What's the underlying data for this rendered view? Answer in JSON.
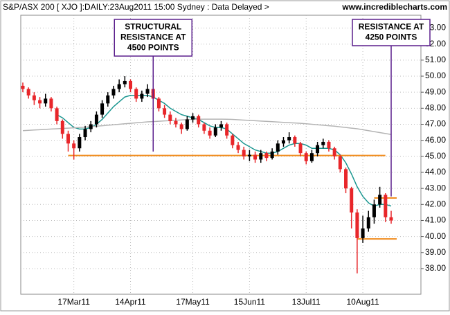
{
  "chart_data": {
    "type": "candlestick",
    "title": "S&P/ASX 200 [ XJO ]:DAILY:23Aug2011 15:00 Sydney : Data Delayed >",
    "source": "www.incrediblecharts.com",
    "categories": [
      null,
      null,
      null,
      null,
      null,
      null,
      null,
      null,
      null,
      "17Mar11",
      null,
      null,
      null,
      null,
      null,
      null,
      null,
      null,
      null,
      "14Apr11",
      null,
      null,
      null,
      null,
      null,
      null,
      null,
      null,
      null,
      null,
      "17May11",
      null,
      null,
      null,
      null,
      null,
      null,
      null,
      null,
      null,
      "15Jun11",
      null,
      null,
      null,
      null,
      null,
      null,
      null,
      null,
      null,
      "13Jul11",
      null,
      null,
      null,
      null,
      null,
      null,
      null,
      null,
      null,
      "10Aug11",
      null,
      null,
      null,
      null,
      null
    ],
    "open": [
      49.4,
      49.2,
      48.8,
      48.5,
      48.3,
      48.6,
      48.0,
      47.2,
      46.4,
      45.8,
      45.5,
      46.2,
      46.7,
      47.0,
      47.6,
      48.3,
      48.8,
      49.2,
      49.5,
      49.7,
      49.2,
      48.6,
      48.9,
      49.2,
      48.6,
      48.0,
      47.6,
      47.2,
      47.0,
      46.7,
      47.3,
      47.5,
      47.0,
      46.6,
      46.3,
      46.8,
      47.0,
      46.3,
      45.7,
      45.4,
      45.0,
      45.1,
      44.8,
      45.2,
      44.9,
      45.3,
      45.8,
      46.0,
      46.2,
      45.8,
      45.2,
      44.7,
      45.2,
      45.7,
      45.9,
      45.5,
      45.0,
      44.2,
      43.0,
      41.5,
      39.9,
      40.5,
      41.2,
      42.0,
      42.6,
      41.2
    ],
    "high": [
      49.6,
      49.3,
      49.0,
      48.7,
      48.9,
      48.7,
      48.1,
      47.3,
      46.6,
      46.0,
      46.4,
      46.9,
      47.2,
      47.8,
      48.5,
      49.0,
      49.4,
      49.8,
      50.0,
      49.8,
      49.3,
      49.1,
      49.5,
      49.3,
      48.7,
      48.2,
      47.8,
      47.4,
      47.1,
      47.5,
      47.7,
      47.6,
      47.1,
      46.8,
      47.0,
      47.2,
      47.1,
      46.4,
      45.9,
      45.6,
      45.4,
      45.3,
      45.4,
      45.3,
      45.5,
      46.0,
      46.2,
      46.5,
      46.3,
      45.9,
      45.3,
      45.4,
      45.9,
      46.1,
      46.0,
      45.6,
      45.1,
      44.3,
      43.1,
      41.7,
      41.3,
      41.6,
      42.3,
      43.1,
      42.7,
      41.6
    ],
    "low": [
      49.0,
      48.6,
      48.2,
      48.0,
      48.1,
      47.8,
      47.0,
      46.1,
      45.3,
      44.8,
      45.3,
      46.0,
      46.5,
      46.8,
      47.4,
      48.1,
      48.6,
      49.0,
      49.3,
      49.0,
      48.4,
      48.4,
      48.7,
      48.4,
      47.8,
      47.4,
      47.0,
      46.8,
      46.4,
      46.6,
      47.1,
      46.8,
      46.4,
      46.1,
      46.2,
      46.6,
      46.1,
      45.5,
      45.2,
      44.8,
      44.7,
      44.6,
      44.6,
      44.7,
      44.8,
      45.1,
      45.6,
      45.8,
      45.6,
      45.0,
      44.5,
      44.6,
      45.0,
      45.5,
      45.3,
      44.8,
      44.0,
      42.7,
      40.5,
      37.7,
      39.6,
      40.3,
      40.8,
      41.8,
      40.9,
      40.8
    ],
    "close": [
      49.2,
      48.8,
      48.5,
      48.3,
      48.6,
      48.0,
      47.2,
      46.4,
      45.8,
      45.5,
      46.2,
      46.7,
      47.0,
      47.6,
      48.3,
      48.8,
      49.2,
      49.5,
      49.7,
      49.2,
      48.6,
      48.9,
      49.2,
      48.6,
      48.0,
      47.6,
      47.2,
      47.0,
      46.7,
      47.3,
      47.5,
      47.0,
      46.6,
      46.3,
      46.8,
      47.0,
      46.3,
      45.7,
      45.4,
      45.0,
      45.1,
      44.8,
      45.2,
      44.9,
      45.3,
      45.8,
      46.0,
      46.2,
      45.8,
      45.2,
      44.7,
      45.2,
      45.7,
      45.9,
      45.5,
      45.0,
      44.2,
      43.0,
      41.5,
      39.9,
      40.5,
      41.2,
      42.0,
      42.6,
      41.2,
      41.0
    ],
    "up_color": "#000000",
    "down_color": "#e8262a",
    "moving_averages": [
      {
        "color": "#1a9690",
        "values": [
          null,
          null,
          null,
          null,
          null,
          null,
          47.6,
          47.4,
          47.1,
          46.8,
          46.7,
          46.7,
          46.8,
          47.0,
          47.3,
          47.7,
          48.1,
          48.4,
          48.7,
          48.8,
          48.8,
          48.8,
          48.8,
          48.7,
          48.5,
          48.3,
          48.0,
          47.8,
          47.6,
          47.5,
          47.4,
          47.3,
          47.1,
          46.9,
          46.8,
          46.8,
          46.7,
          46.4,
          46.1,
          45.8,
          45.6,
          45.4,
          45.3,
          45.2,
          45.2,
          45.3,
          45.5,
          45.7,
          45.8,
          45.8,
          45.7,
          45.5,
          45.5,
          45.5,
          45.5,
          45.4,
          45.1,
          44.6,
          43.9,
          43.1,
          42.5,
          42.1,
          41.9,
          42.0,
          42.0,
          41.9
        ]
      },
      {
        "color": "#b4b4b4",
        "values": [
          46.6,
          46.62,
          46.64,
          46.66,
          46.68,
          46.7,
          46.72,
          46.74,
          46.76,
          46.78,
          46.8,
          46.82,
          46.85,
          46.88,
          46.91,
          46.94,
          46.97,
          47.0,
          47.03,
          47.06,
          47.09,
          47.12,
          47.15,
          47.17,
          47.19,
          47.21,
          47.23,
          47.25,
          47.27,
          47.29,
          47.3,
          47.31,
          47.32,
          47.32,
          47.32,
          47.32,
          47.31,
          47.3,
          47.28,
          47.26,
          47.24,
          47.22,
          47.2,
          47.18,
          47.16,
          47.14,
          47.12,
          47.1,
          47.08,
          47.06,
          47.03,
          47.0,
          46.97,
          46.94,
          46.91,
          46.88,
          46.84,
          46.8,
          46.76,
          46.72,
          46.66,
          46.6,
          46.54,
          46.48,
          46.42,
          46.36
        ]
      }
    ],
    "levels": [
      {
        "value": 45.05,
        "from": 8,
        "to": 63,
        "color": "#f08c1e"
      },
      {
        "value": 42.4,
        "from": 62,
        "to": 65,
        "color": "#f08c1e"
      },
      {
        "value": 39.85,
        "from": 59,
        "to": 65,
        "color": "#f08c1e"
      }
    ],
    "annotations": [
      {
        "lines": [
          "STRUCTURAL",
          "RESISTANCE AT",
          "4500 POINTS"
        ],
        "x": 23,
        "y": 45.3,
        "color": "#5a1e8c"
      },
      {
        "lines": [
          "RESISTANCE AT",
          "4250 POINTS"
        ],
        "x": 65,
        "y": 42.5,
        "color": "#5a1e8c"
      }
    ],
    "ylim": [
      36.4,
      53.8
    ],
    "yticks": [
      {
        "value": 38,
        "label": "38.00"
      },
      {
        "value": 39,
        "label": "39.00"
      },
      {
        "value": 40,
        "label": "40.00"
      },
      {
        "value": 41,
        "label": "41.00"
      },
      {
        "value": 42,
        "label": "42.00"
      },
      {
        "value": 43,
        "label": "43.00"
      },
      {
        "value": 44,
        "label": "44.00"
      },
      {
        "value": 45,
        "label": "45.00"
      },
      {
        "value": 46,
        "label": "46.00"
      },
      {
        "value": 47,
        "label": "47.00"
      },
      {
        "value": 48,
        "label": "48.00"
      },
      {
        "value": 49,
        "label": "49.00"
      },
      {
        "value": 50,
        "label": "50.00"
      },
      {
        "value": 51,
        "label": "51.00"
      },
      {
        "value": 52,
        "label": "52.00"
      },
      {
        "value": 53,
        "label": "53.00"
      }
    ],
    "grid": true
  }
}
